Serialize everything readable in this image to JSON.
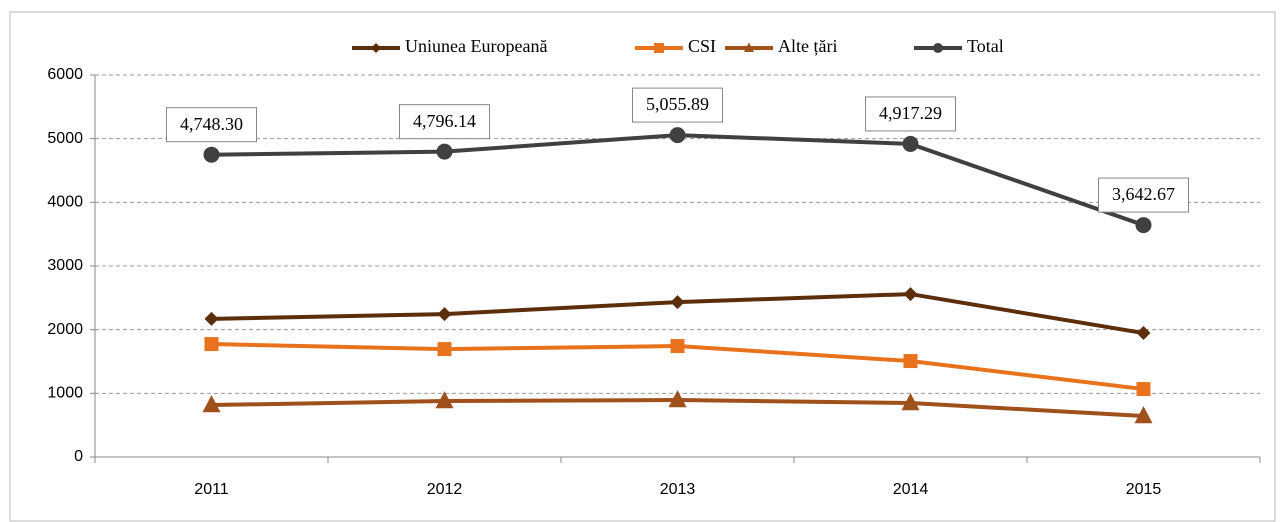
{
  "chart_data": {
    "type": "line",
    "categories": [
      "2011",
      "2012",
      "2013",
      "2014",
      "2015"
    ],
    "series": [
      {
        "name": "Uniunea Europeană",
        "color": "#5c2e0c",
        "marker": "diamond",
        "values": [
          2170,
          2245,
          2433,
          2559,
          1947
        ]
      },
      {
        "name": "CSI",
        "color": "#e8731c",
        "marker": "square",
        "values": [
          1774,
          1695,
          1743,
          1507,
          1067
        ]
      },
      {
        "name": "Alte țări",
        "color": "#a0501a",
        "marker": "triangle",
        "values": [
          816,
          879,
          895,
          848,
          644
        ]
      },
      {
        "name": "Total",
        "color": "#404040",
        "marker": "circle",
        "values": [
          4748.3,
          4796.14,
          5055.89,
          4917.29,
          3642.67
        ],
        "value_labels": [
          "4,748.30",
          "4,796.14",
          "5,055.89",
          "4,917.29",
          "3,642.67"
        ]
      }
    ],
    "ylim": [
      0,
      6000
    ],
    "yticks": [
      0,
      1000,
      2000,
      3000,
      4000,
      5000,
      6000
    ],
    "grid": true,
    "legend": "top"
  }
}
